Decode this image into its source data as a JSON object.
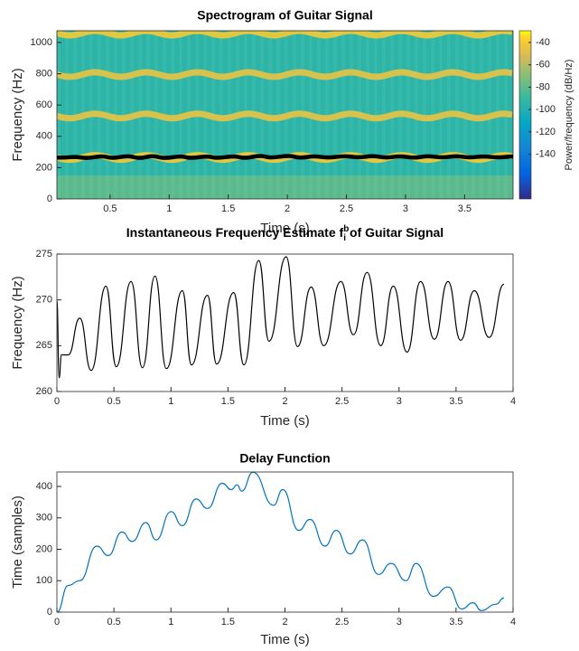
{
  "chart_data": [
    {
      "type": "spectrogram",
      "title": "Spectrogram of Guitar Signal",
      "xlabel": "Time (s)",
      "ylabel": "Frequency (Hz)",
      "xlim": [
        0.05,
        3.91
      ],
      "xticks": [
        0.5,
        1,
        1.5,
        2,
        2.5,
        3,
        3.5
      ],
      "ylim": [
        0,
        1075
      ],
      "yticks": [
        0,
        200,
        400,
        600,
        800,
        1000
      ],
      "colorbar_label": "Power/frequency (dB/Hz)",
      "clim": [
        -180,
        -29.5
      ],
      "cticks": [
        -40,
        -60,
        -80,
        -100,
        -120,
        -140
      ],
      "floor_level": -95,
      "low_band": {
        "upper": 150,
        "level": -78
      },
      "ridges": [
        {
          "frequency": 1060,
          "level": -40
        },
        {
          "frequency": 795,
          "level": -45
        },
        {
          "frequency": 530,
          "level": -45
        },
        {
          "frequency": 265,
          "level": -40
        }
      ],
      "overlay_color": "#000000"
    },
    {
      "type": "line",
      "title": {
        "text": "Instantaneous Frequency Estimate f",
        "superscript": "b",
        "subscript": "i",
        "rest": " of Guitar Signal"
      },
      "xlabel": "Time (s)",
      "ylabel": "Frequency (Hz)",
      "xlim": [
        0,
        4
      ],
      "xticks": [
        0,
        0.5,
        1,
        1.5,
        2,
        2.5,
        3,
        3.5,
        4
      ],
      "ylim": [
        260,
        275
      ],
      "yticks": [
        260,
        265,
        270,
        275
      ],
      "color": "#000000",
      "x": [
        0,
        0.02,
        0.04,
        0.1,
        0.2,
        0.3,
        0.43,
        0.52,
        0.65,
        0.75,
        0.86,
        0.96,
        1.1,
        1.18,
        1.32,
        1.4,
        1.55,
        1.64,
        1.77,
        1.86,
        2.01,
        2.11,
        2.23,
        2.34,
        2.49,
        2.6,
        2.72,
        2.84,
        2.95,
        3.07,
        3.19,
        3.31,
        3.43,
        3.54,
        3.66,
        3.79,
        3.92
      ],
      "values": [
        270,
        261.5,
        264,
        264,
        268,
        262.3,
        271.5,
        262.7,
        272,
        262.6,
        272.6,
        262.5,
        271,
        262.9,
        270.5,
        263,
        270.8,
        262.9,
        274.3,
        265.5,
        274.7,
        264.9,
        271.4,
        265,
        272,
        266.2,
        273,
        265,
        271.5,
        264.3,
        272,
        265.7,
        272,
        265.6,
        271,
        265.9,
        271.7
      ]
    },
    {
      "type": "line",
      "title": "Delay Function",
      "xlabel": "Time (s)",
      "ylabel": "Time (samples)",
      "xlim": [
        0,
        4
      ],
      "xticks": [
        0,
        0.5,
        1,
        1.5,
        2,
        2.5,
        3,
        3.5,
        4
      ],
      "ylim": [
        0,
        446
      ],
      "yticks": [
        0,
        100,
        200,
        300,
        400
      ],
      "color": "#0072bd",
      "x": [
        0,
        0.1,
        0.2,
        0.35,
        0.45,
        0.57,
        0.66,
        0.78,
        0.87,
        1.0,
        1.1,
        1.22,
        1.32,
        1.45,
        1.53,
        1.58,
        1.62,
        1.72,
        1.9,
        1.98,
        2.12,
        2.22,
        2.35,
        2.45,
        2.57,
        2.68,
        2.82,
        2.93,
        3.06,
        3.15,
        3.3,
        3.43,
        3.55,
        3.65,
        3.72,
        3.85,
        3.92
      ],
      "values": [
        0,
        85,
        100,
        210,
        180,
        255,
        225,
        285,
        230,
        320,
        275,
        360,
        330,
        410,
        390,
        405,
        385,
        445,
        340,
        390,
        260,
        295,
        210,
        260,
        185,
        230,
        120,
        155,
        100,
        155,
        50,
        80,
        10,
        30,
        5,
        25,
        45
      ]
    }
  ]
}
